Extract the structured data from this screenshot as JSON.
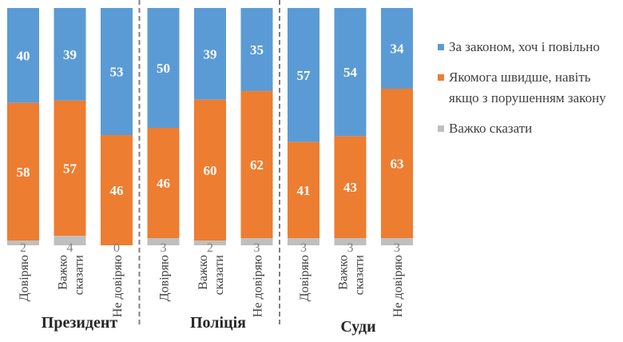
{
  "chart_data": {
    "type": "bar",
    "stacked": true,
    "groups": [
      {
        "name": "Президент",
        "categories": [
          "Довіряю",
          "Важко сказати",
          "Не довіряю"
        ]
      },
      {
        "name": "Поліція",
        "categories": [
          "Довіряю",
          "Важко сказати",
          "Не довіряю"
        ]
      },
      {
        "name": "Суди",
        "categories": [
          "Довіряю",
          "Важко сказати",
          "Не довіряю"
        ]
      }
    ],
    "series": [
      {
        "name": "За законом, хоч і повільно",
        "color": "#5B9BD5",
        "values": [
          40,
          39,
          53,
          50,
          39,
          35,
          57,
          54,
          34
        ]
      },
      {
        "name": "Якомога швидше, навіть якщо з порушенням закону",
        "color": "#ED7D31",
        "values": [
          58,
          57,
          46,
          46,
          60,
          62,
          41,
          43,
          63
        ]
      },
      {
        "name": "Важко сказати",
        "color": "#BFBFBF",
        "values": [
          2,
          4,
          0,
          3,
          2,
          3,
          3,
          3,
          3
        ]
      }
    ],
    "legend": "right",
    "grid": false
  }
}
